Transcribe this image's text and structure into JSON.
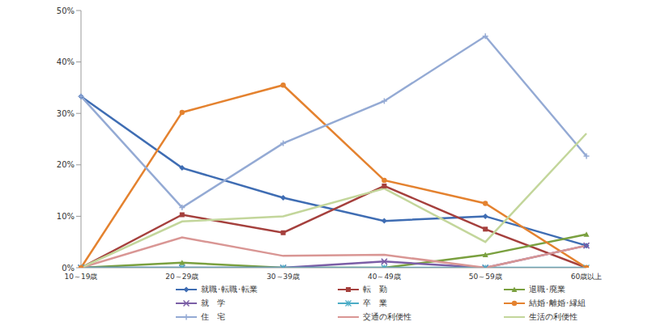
{
  "chart_data": {
    "type": "line",
    "categories": [
      "10～19歳",
      "20～29歳",
      "30～39歳",
      "40～49歳",
      "50～59歳",
      "60歳以上"
    ],
    "ylim": [
      0,
      50
    ],
    "yticks": [
      {
        "value": 0,
        "label": "0%"
      },
      {
        "value": 10,
        "label": "10%"
      },
      {
        "value": 20,
        "label": "20%"
      },
      {
        "value": 30,
        "label": "30%"
      },
      {
        "value": 40,
        "label": "40%"
      },
      {
        "value": 50,
        "label": "50%"
      }
    ],
    "grid": false,
    "legend": "bottom",
    "series": [
      {
        "name": "就職･転職･転業",
        "color": "#3f6db3",
        "marker": "diamond",
        "values": [
          33.3,
          19.4,
          13.6,
          9.1,
          10.0,
          4.3
        ]
      },
      {
        "name": "転　勤",
        "color": "#a5403d",
        "marker": "square",
        "values": [
          0,
          10.3,
          6.8,
          15.9,
          7.5,
          0
        ]
      },
      {
        "name": "退職･廃業",
        "color": "#7aa03f",
        "marker": "triangle",
        "values": [
          0,
          1.0,
          0,
          0,
          2.5,
          6.5
        ]
      },
      {
        "name": "就　学",
        "color": "#7b5ea6",
        "marker": "x",
        "values": [
          0,
          0,
          0,
          1.2,
          0,
          4.3
        ]
      },
      {
        "name": "卒　業",
        "color": "#4bacc6",
        "marker": "star",
        "values": [
          0,
          0,
          0,
          0,
          0,
          0
        ]
      },
      {
        "name": "結婚･離婚･縁組",
        "color": "#e4822f",
        "marker": "circle",
        "values": [
          0,
          30.2,
          35.5,
          17.0,
          12.5,
          0
        ]
      },
      {
        "name": "住　宅",
        "color": "#94aad4",
        "marker": "plus",
        "values": [
          33.3,
          11.7,
          24.2,
          32.4,
          45.0,
          21.7
        ]
      },
      {
        "name": "交通の利便性",
        "color": "#d99694",
        "marker": "none",
        "values": [
          0,
          5.9,
          2.3,
          2.5,
          0,
          4.3
        ]
      },
      {
        "name": "生活の利便性",
        "color": "#c3d69b",
        "marker": "none",
        "values": [
          0,
          9.0,
          10.0,
          15.4,
          5.0,
          26.1
        ]
      }
    ]
  }
}
